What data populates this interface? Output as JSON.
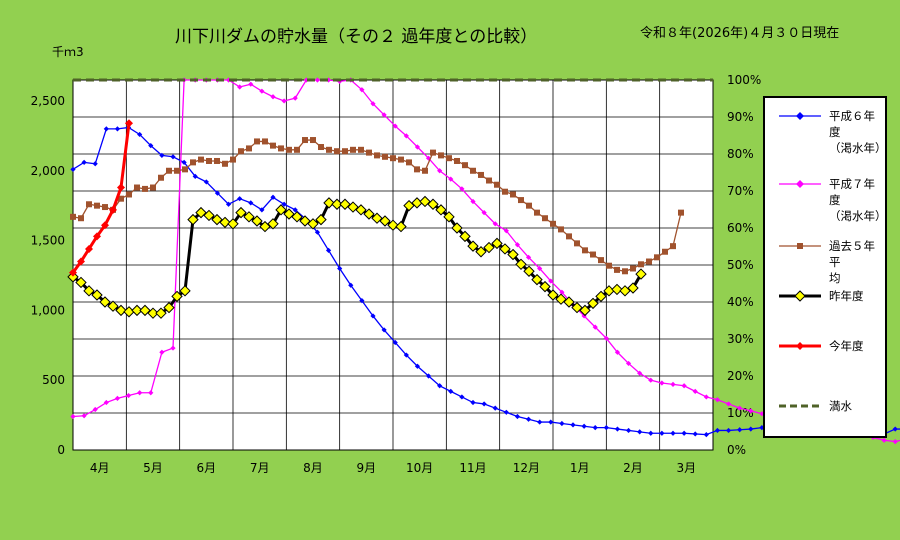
{
  "header": {
    "title": "川下川ダムの貯水量（その２ 過年度との比較）",
    "date": "令和８年(2026年)４月３０日現在"
  },
  "chart_data": {
    "type": "line",
    "title": "川下川ダムの貯水量（その２ 過年度との比較）",
    "ylabel": "千ｍ3",
    "ylim": [
      0,
      2650
    ],
    "yticks": [
      0,
      500,
      1000,
      1500,
      2000,
      2500
    ],
    "ytick_labels": [
      "0",
      "500",
      "1,000",
      "1,500",
      "2,000",
      "2,500"
    ],
    "y2lim": [
      0,
      100
    ],
    "y2ticks": [
      0,
      10,
      20,
      30,
      40,
      50,
      60,
      70,
      80,
      90,
      100
    ],
    "y2tick_labels": [
      "0%",
      "10%",
      "20%",
      "30%",
      "40%",
      "50%",
      "60%",
      "70%",
      "80%",
      "90%",
      "100%"
    ],
    "xlim": [
      0,
      72
    ],
    "months": [
      "4月",
      "5月",
      "6月",
      "7月",
      "8月",
      "9月",
      "10月",
      "11月",
      "12月",
      "1月",
      "2月",
      "3月"
    ],
    "grid": true,
    "legend_position": "right",
    "series": [
      {
        "name": "平成６年度\n（渇水年）",
        "color": "#0000ff",
        "marker": "diamond",
        "values": [
          2010,
          2060,
          2050,
          2300,
          2300,
          2310,
          2260,
          2180,
          2110,
          2100,
          2060,
          1960,
          1920,
          1840,
          1760,
          1800,
          1770,
          1720,
          1810,
          1760,
          1720,
          1650,
          1560,
          1430,
          1300,
          1180,
          1070,
          960,
          860,
          770,
          680,
          600,
          530,
          460,
          420,
          380,
          340,
          330,
          300,
          270,
          240,
          220,
          200,
          200,
          190,
          180,
          170,
          160,
          160,
          150,
          140,
          130,
          120,
          120,
          120,
          120,
          115,
          110,
          140,
          140,
          145,
          150,
          160,
          175,
          150,
          150,
          150,
          150,
          140,
          140,
          130,
          125,
          120,
          115,
          150,
          150,
          220
        ],
        "xs_step": 1.25
      },
      {
        "name": "平成７年度\n（渇水年）",
        "color": "#ff00ff",
        "marker": "diamond",
        "values": [
          240,
          245,
          290,
          340,
          370,
          390,
          410,
          410,
          700,
          730,
          2650,
          2650,
          2650,
          2650,
          2650,
          2600,
          2620,
          2570,
          2530,
          2500,
          2520,
          2650,
          2650,
          2650,
          2640,
          2650,
          2580,
          2480,
          2400,
          2320,
          2250,
          2170,
          2090,
          2000,
          1940,
          1870,
          1780,
          1700,
          1620,
          1570,
          1470,
          1380,
          1300,
          1210,
          1130,
          1040,
          960,
          880,
          800,
          700,
          620,
          550,
          500,
          480,
          470,
          460,
          420,
          380,
          360,
          330,
          300,
          280,
          260,
          250,
          230,
          220,
          210,
          180,
          160,
          150,
          130,
          110,
          90,
          70,
          60,
          80,
          90,
          120,
          150,
          200,
          250
        ],
        "xs_step": 1.25
      },
      {
        "name": "過去５年平\n均",
        "color": "#a0522d",
        "marker": "square",
        "values": [
          1670,
          1660,
          1760,
          1750,
          1740,
          1720,
          1800,
          1830,
          1880,
          1870,
          1880,
          1950,
          2000,
          2000,
          2010,
          2060,
          2080,
          2070,
          2070,
          2050,
          2080,
          2140,
          2160,
          2210,
          2210,
          2180,
          2160,
          2150,
          2150,
          2220,
          2220,
          2170,
          2150,
          2140,
          2140,
          2150,
          2150,
          2130,
          2110,
          2100,
          2090,
          2080,
          2060,
          2010,
          2000,
          2130,
          2110,
          2090,
          2070,
          2040,
          2000,
          1970,
          1930,
          1900,
          1850,
          1830,
          1790,
          1750,
          1700,
          1660,
          1620,
          1580,
          1530,
          1480,
          1430,
          1400,
          1360,
          1320,
          1290,
          1280,
          1300,
          1330,
          1350,
          1380,
          1420,
          1460,
          1700
        ],
        "xs_step": 0.9
      },
      {
        "name": "昨年度",
        "color": "#000000",
        "marker": "diamond-yellow",
        "values": [
          1240,
          1200,
          1140,
          1110,
          1060,
          1030,
          1000,
          990,
          1000,
          1000,
          980,
          980,
          1020,
          1100,
          1140,
          1650,
          1700,
          1680,
          1650,
          1630,
          1620,
          1700,
          1670,
          1640,
          1600,
          1620,
          1720,
          1690,
          1670,
          1640,
          1620,
          1650,
          1770,
          1760,
          1760,
          1740,
          1720,
          1690,
          1660,
          1640,
          1610,
          1600,
          1750,
          1770,
          1780,
          1760,
          1720,
          1670,
          1590,
          1530,
          1460,
          1420,
          1450,
          1480,
          1440,
          1400,
          1330,
          1280,
          1220,
          1170,
          1110,
          1080,
          1060,
          1020,
          1000,
          1050,
          1100,
          1140,
          1150,
          1140,
          1160,
          1260
        ],
        "xs_step": 0.9
      },
      {
        "name": "今年度",
        "color": "#ff0000",
        "marker": "diamond",
        "values": [
          1270,
          1350,
          1440,
          1530,
          1610,
          1720,
          1880,
          2340
        ],
        "xs_step": 0.9
      },
      {
        "name": "満水",
        "color": "#4f6228",
        "dashed": true,
        "values": [
          2650,
          2650
        ],
        "full_line": true
      }
    ]
  }
}
